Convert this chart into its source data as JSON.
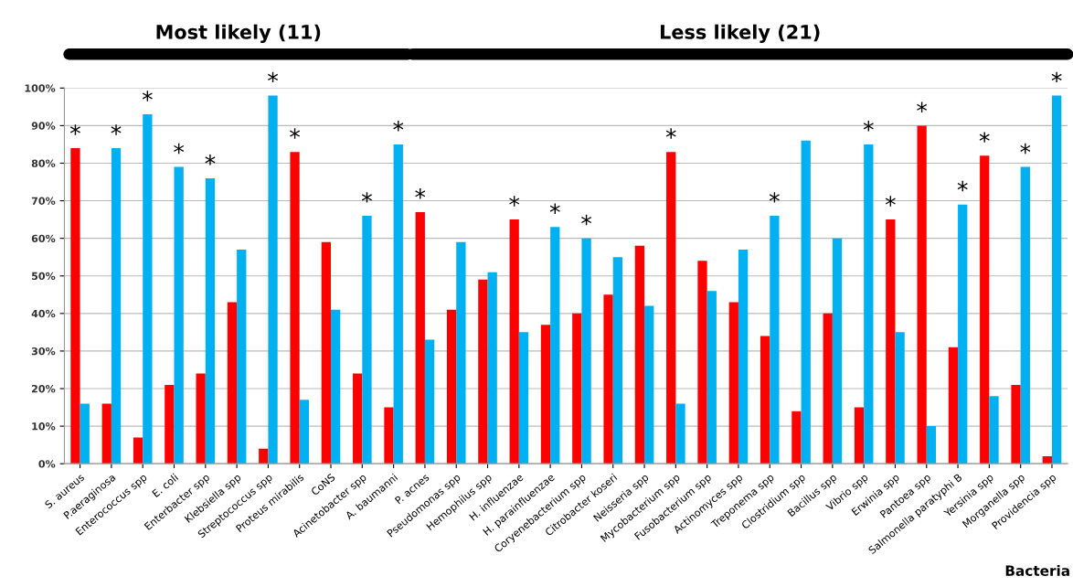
{
  "chart_data": {
    "type": "bar",
    "categories": [
      "S. aureus",
      "P.aeraginosa",
      "Enterococcus spp",
      "E. coli",
      "Enterbacter spp",
      "Klebsiella spp",
      "Streptococcus spp",
      "Proteus mirabilis",
      "CoNS",
      "Acinetobacter spp",
      "A. baumanni",
      "P. acnes",
      "Pseudomonas spp",
      "Hemophilus spp",
      "H. influenzae",
      "H. parainfluenzae",
      "Coryenebacterium spp",
      "Citrobacter koseri",
      "Neisseria spp",
      "Mycobacterium spp",
      "Fusobacterium spp",
      "Actinomyces spp",
      "Treponema spp",
      "Clostridium spp",
      "Bacillus spp",
      "Vibrio spp",
      "Erwinia spp",
      "Pantoea spp",
      "Salmonella paratyphi B",
      "Yersinia spp",
      "Morganella spp",
      "Providencia spp"
    ],
    "series": [
      {
        "color": "#ff0000",
        "values": [
          84,
          16,
          7,
          21,
          24,
          43,
          4,
          83,
          59,
          24,
          15,
          67,
          41,
          49,
          65,
          37,
          40,
          45,
          58,
          83,
          54,
          43,
          34,
          14,
          40,
          15,
          65,
          90,
          31,
          82,
          21,
          2
        ]
      },
      {
        "color": "#00b0f0",
        "values": [
          16,
          84,
          93,
          79,
          76,
          57,
          98,
          17,
          41,
          66,
          85,
          33,
          59,
          51,
          35,
          63,
          60,
          55,
          42,
          16,
          46,
          57,
          66,
          86,
          60,
          85,
          35,
          10,
          69,
          18,
          79,
          98
        ]
      }
    ],
    "xlabel": "Bacteria",
    "ylim": [
      0,
      100
    ],
    "yticks": [
      {
        "value": 0,
        "label": "0%"
      },
      {
        "value": 10,
        "label": "10%"
      },
      {
        "value": 20,
        "label": "20%"
      },
      {
        "value": 30,
        "label": "30%"
      },
      {
        "value": 40,
        "label": "40%"
      },
      {
        "value": 50,
        "label": "50%"
      },
      {
        "value": 60,
        "label": "60%"
      },
      {
        "value": 70,
        "label": "70%"
      },
      {
        "value": 80,
        "label": "80%"
      },
      {
        "value": 90,
        "label": "90%"
      },
      {
        "value": 100,
        "label": "100%"
      }
    ],
    "grid": "y",
    "annotations": [
      "Most likely (11)",
      "Less likely (21)",
      {
        "text": "*",
        "x": "S. aureus",
        "y": 84
      },
      {
        "text": "*",
        "x": "P.aeraginosa",
        "y": 84
      },
      {
        "text": "*",
        "x": "Enterococcus spp",
        "y": 93
      },
      {
        "text": "*",
        "x": "E. coli",
        "y": 79
      },
      {
        "text": "*",
        "x": "Enterbacter spp",
        "y": 76
      },
      {
        "text": "*",
        "x": "Streptococcus spp",
        "y": 98
      },
      {
        "text": "*",
        "x": "Proteus mirabilis",
        "y": 83
      },
      {
        "text": "*",
        "x": "Acinetobacter spp",
        "y": 66
      },
      {
        "text": "*",
        "x": "A. baumanni",
        "y": 85
      },
      {
        "text": "*",
        "x": "P. acnes",
        "y": 67
      },
      {
        "text": "*",
        "x": "H. influenzae",
        "y": 65
      },
      {
        "text": "*",
        "x": "H. parainfluenzae",
        "y": 63
      },
      {
        "text": "*",
        "x": "Coryenebacterium spp",
        "y": 60
      },
      {
        "text": "*",
        "x": "Mycobacterium spp",
        "y": 83
      },
      {
        "text": "*",
        "x": "Treponema spp",
        "y": 66
      },
      {
        "text": "*",
        "x": "Vibrio spp",
        "y": 85
      },
      {
        "text": "*",
        "x": "Erwinia spp",
        "y": 65
      },
      {
        "text": "*",
        "x": "Pantoea spp",
        "y": 90
      },
      {
        "text": "*",
        "x": "Salmonella paratyphi B",
        "y": 69
      },
      {
        "text": "*",
        "x": "Yersinia spp",
        "y": 82
      },
      {
        "text": "*",
        "x": "Morganella spp",
        "y": 79
      },
      {
        "text": "*",
        "x": "Providencia spp",
        "y": 98
      }
    ]
  }
}
